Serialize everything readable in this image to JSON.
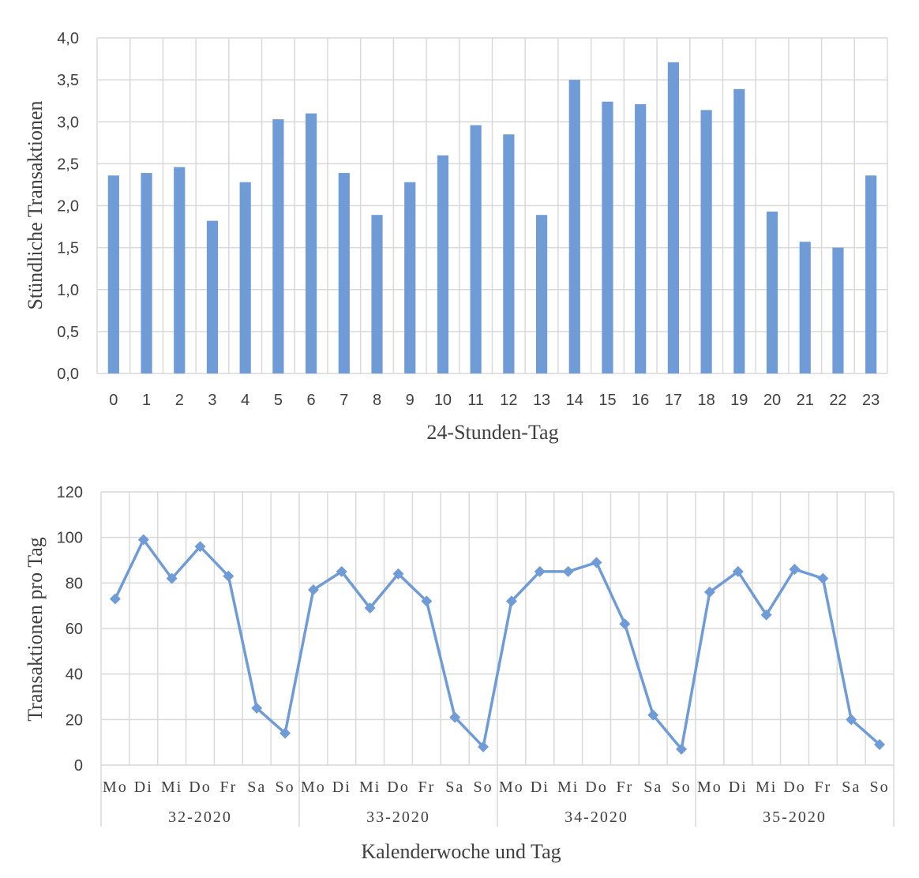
{
  "colors": {
    "series": "#6f9bd6",
    "grid": "#d9d9d9",
    "text": "#404040"
  },
  "chart_data": [
    {
      "type": "bar",
      "xlabel": "24-Stunden-Tag",
      "ylabel": "Stündliche Transaktionen",
      "ylim": [
        0,
        4
      ],
      "ytick_labels": [
        "0,0",
        "0,5",
        "1,0",
        "1,5",
        "2,0",
        "2,5",
        "3,0",
        "3,5",
        "4,0"
      ],
      "grid": true,
      "categories": [
        "0",
        "1",
        "2",
        "3",
        "4",
        "5",
        "6",
        "7",
        "8",
        "9",
        "10",
        "11",
        "12",
        "13",
        "14",
        "15",
        "16",
        "17",
        "18",
        "19",
        "20",
        "21",
        "22",
        "23"
      ],
      "values": [
        2.36,
        2.39,
        2.46,
        1.82,
        2.28,
        3.03,
        3.1,
        2.39,
        1.89,
        2.28,
        2.6,
        2.96,
        2.85,
        1.89,
        3.5,
        3.24,
        3.21,
        3.71,
        3.14,
        3.39,
        1.93,
        1.57,
        1.5,
        2.36
      ]
    },
    {
      "type": "line",
      "xlabel": "Kalenderwoche und Tag",
      "ylabel": "Transaktionen pro Tag",
      "ylim": [
        0,
        120
      ],
      "ytick_labels": [
        "0",
        "20",
        "40",
        "60",
        "80",
        "100",
        "120"
      ],
      "grid": true,
      "weeks": [
        "32-2020",
        "33-2020",
        "34-2020",
        "35-2020"
      ],
      "days": [
        "Mo",
        "Di",
        "Mi",
        "Do",
        "Fr",
        "Sa",
        "So"
      ],
      "values": [
        73,
        99,
        82,
        96,
        83,
        25,
        14,
        77,
        85,
        69,
        84,
        72,
        21,
        8,
        72,
        85,
        85,
        89,
        62,
        22,
        7,
        76,
        85,
        66,
        86,
        82,
        20,
        9
      ]
    }
  ]
}
